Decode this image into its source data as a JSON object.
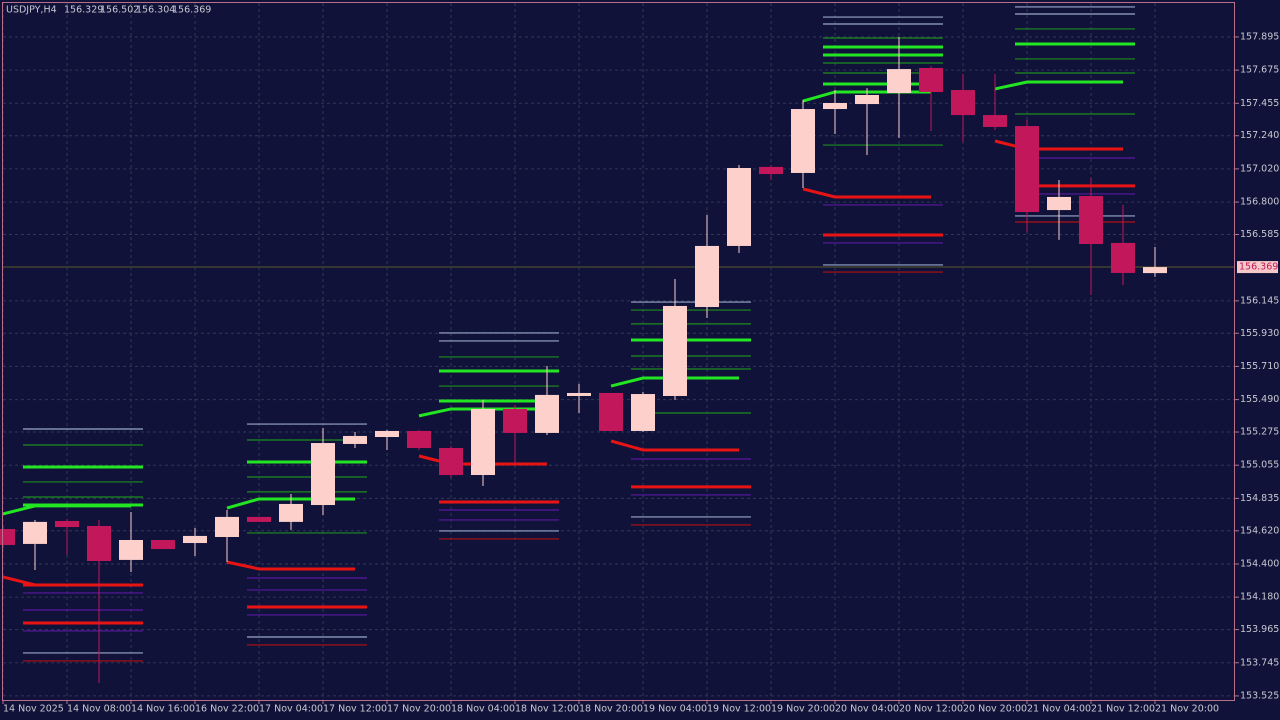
{
  "chart_data": {
    "type": "candlestick",
    "title": "USDJPY,H4",
    "categories": [
      "14 Nov 2025",
      null,
      "14 Nov 08:00",
      null,
      "14 Nov 16:00",
      null,
      "16 Nov 22:00",
      null,
      "17 Nov 04:00",
      null,
      "17 Nov 12:00",
      null,
      "17 Nov 20:00",
      null,
      "18 Nov 04:00",
      null,
      "18 Nov 12:00",
      null,
      "18 Nov 20:00",
      null,
      "19 Nov 04:00",
      null,
      "19 Nov 12:00",
      null,
      "19 Nov 20:00",
      null,
      "20 Nov 04:00",
      null,
      "20 Nov 12:00",
      null,
      "20 Nov 20:00",
      null,
      "21 Nov 04:00",
      null,
      "21 Nov 12:00",
      null,
      "21 Nov 20:00"
    ],
    "open": [
      154.632,
      154.533,
      154.685,
      154.652,
      154.427,
      154.559,
      154.539,
      154.579,
      154.712,
      154.679,
      154.791,
      155.196,
      155.242,
      155.282,
      155.169,
      154.99,
      155.428,
      155.269,
      155.514,
      155.534,
      155.282,
      155.514,
      156.104,
      156.509,
      157.033,
      156.993,
      157.417,
      157.45,
      157.523,
      157.689,
      157.543,
      157.377,
      157.304,
      156.747,
      156.84,
      156.529,
      156.329
    ],
    "high": [
      154.659,
      154.692,
      154.698,
      154.692,
      154.745,
      154.559,
      154.639,
      154.758,
      154.712,
      154.864,
      155.302,
      155.275,
      155.289,
      155.289,
      155.183,
      155.488,
      155.454,
      155.713,
      155.594,
      155.534,
      155.541,
      156.29,
      156.714,
      157.046,
      157.046,
      157.477,
      157.543,
      157.556,
      157.895,
      157.702,
      157.649,
      157.649,
      157.344,
      156.946,
      156.96,
      156.781,
      156.502
    ],
    "low": [
      154.506,
      154.36,
      154.46,
      153.611,
      154.347,
      154.499,
      154.453,
      154.413,
      154.679,
      154.626,
      154.725,
      155.169,
      155.156,
      155.156,
      154.97,
      154.917,
      155.057,
      155.255,
      155.401,
      155.282,
      155.275,
      155.488,
      156.031,
      156.462,
      156.946,
      156.893,
      157.251,
      157.112,
      157.225,
      157.271,
      157.198,
      157.278,
      156.602,
      156.549,
      156.184,
      156.25,
      156.304
    ],
    "close": [
      154.526,
      154.679,
      154.645,
      154.42,
      154.559,
      154.499,
      154.586,
      154.712,
      154.679,
      154.798,
      155.202,
      155.249,
      155.282,
      155.169,
      154.99,
      155.428,
      155.269,
      155.521,
      155.534,
      155.282,
      155.527,
      156.111,
      156.509,
      157.026,
      156.986,
      157.417,
      157.457,
      157.51,
      157.682,
      157.53,
      157.377,
      157.298,
      156.734,
      156.834,
      156.522,
      156.33,
      156.369
    ],
    "up_color": "#fdd0cc",
    "down_color": "#c2185b",
    "lines": [
      {
        "color": "#22e622",
        "values": [
          154.732,
          154.785,
          154.785,
          154.785,
          154.785,
          null,
          null,
          154.771,
          154.831,
          154.831,
          154.831,
          154.831,
          null,
          155.382,
          155.428,
          155.428,
          155.428,
          155.428,
          null,
          155.58,
          155.633,
          155.633,
          155.633,
          155.633,
          null,
          157.47,
          157.53,
          157.53,
          157.53,
          157.53,
          null,
          157.55,
          157.596,
          157.596,
          157.596,
          157.596,
          null
        ]
      },
      {
        "color": "#e81414",
        "values": [
          154.314,
          154.261,
          154.261,
          154.261,
          154.261,
          null,
          null,
          154.413,
          154.367,
          154.367,
          154.367,
          154.367,
          null,
          155.116,
          155.063,
          155.063,
          155.063,
          155.063,
          null,
          155.216,
          155.156,
          155.156,
          155.156,
          155.156,
          null,
          156.887,
          156.834,
          156.834,
          156.834,
          156.834,
          null,
          157.205,
          157.152,
          157.152,
          157.152,
          157.152,
          null
        ]
      }
    ],
    "zones": [
      {
        "from": 1,
        "to": 4,
        "levels": [
          155.295,
          155.189,
          155.043,
          154.944,
          154.844,
          154.791,
          154.261,
          154.208,
          154.095,
          154.009,
          153.956,
          153.81,
          153.757
        ],
        "colors": [
          "#9aa8c8",
          "#1e8c1e",
          "#22e622",
          "#1e8c1e",
          "#1e8c1e",
          "#22e622",
          "#e81414",
          "#5a1aa0",
          "#5a1aa0",
          "#e81414",
          "#5a1aa0",
          "#9aa8c8",
          "#b01010"
        ]
      },
      {
        "from": 8,
        "to": 11,
        "levels": [
          155.328,
          155.222,
          155.076,
          154.977,
          154.878,
          154.606,
          154.307,
          154.228,
          154.115,
          154.062,
          153.916,
          153.863
        ],
        "colors": [
          "#9aa8c8",
          "#1e8c1e",
          "#22e622",
          "#1e8c1e",
          "#1e8c1e",
          "#1e8c1e",
          "#5a1aa0",
          "#5a1aa0",
          "#e81414",
          "#5a1aa0",
          "#9aa8c8",
          "#b01010"
        ]
      },
      {
        "from": 14,
        "to": 17,
        "levels": [
          155.932,
          155.879,
          155.773,
          155.68,
          155.58,
          155.481,
          154.811,
          154.758,
          154.692,
          154.619,
          154.566
        ],
        "colors": [
          "#9aa8c8",
          "#9aa8c8",
          "#1e8c1e",
          "#22e622",
          "#1e8c1e",
          "#22e622",
          "#e81414",
          "#5a1aa0",
          "#5a1aa0",
          "#9aa8c8",
          "#b01010"
        ]
      },
      {
        "from": 20,
        "to": 23,
        "levels": [
          156.137,
          156.084,
          155.992,
          155.885,
          155.779,
          155.693,
          155.401,
          155.096,
          154.911,
          154.858,
          154.712,
          154.659
        ],
        "colors": [
          "#9aa8c8",
          "#1e8c1e",
          "#1e8c1e",
          "#22e622",
          "#1e8c1e",
          "#1e8c1e",
          "#1e8c1e",
          "#5a1aa0",
          "#e81414",
          "#5a1aa0",
          "#9aa8c8",
          "#b01010"
        ]
      },
      {
        "from": 26,
        "to": 29,
        "levels": [
          158.027,
          157.981,
          157.888,
          157.828,
          157.775,
          157.722,
          157.656,
          157.583,
          157.178,
          156.781,
          156.582,
          156.529,
          156.383,
          156.336
        ],
        "colors": [
          "#9aa8c8",
          "#9aa8c8",
          "#1e8c1e",
          "#22e622",
          "#22e622",
          "#1e8c1e",
          "#1e8c1e",
          "#22e622",
          "#1e8c1e",
          "#5a1aa0",
          "#e81414",
          "#5a1aa0",
          "#9aa8c8",
          "#b01010"
        ]
      },
      {
        "from": 32,
        "to": 35,
        "levels": [
          158.094,
          158.047,
          157.948,
          157.848,
          157.749,
          157.656,
          157.384,
          157.092,
          156.907,
          156.854,
          156.708,
          156.668
        ],
        "colors": [
          "#9aa8c8",
          "#9aa8c8",
          "#1e8c1e",
          "#22e622",
          "#1e8c1e",
          "#1e8c1e",
          "#1e8c1e",
          "#5a1aa0",
          "#e81414",
          "#5a1aa0",
          "#9aa8c8",
          "#b01010"
        ]
      }
    ],
    "ylim": [
      153.498,
      158.14
    ],
    "yticks": [
      157.895,
      157.675,
      157.455,
      {
        "value": 157.24,
        "label": "157.240"
      },
      {
        "value": 157.02,
        "label": "157.020"
      },
      {
        "value": 156.8,
        "label": "156.800"
      },
      156.585,
      156.145,
      {
        "value": 155.93,
        "label": "155.930"
      },
      {
        "value": 155.71,
        "label": "155.710"
      },
      {
        "value": 155.49,
        "label": "155.490"
      },
      155.275,
      155.055,
      154.835,
      {
        "value": 154.62,
        "label": "154.620"
      },
      {
        "value": 154.4,
        "label": "154.400"
      },
      {
        "value": 154.18,
        "label": "154.180"
      },
      153.965,
      153.745,
      153.525
    ],
    "grid": true
  }
}
